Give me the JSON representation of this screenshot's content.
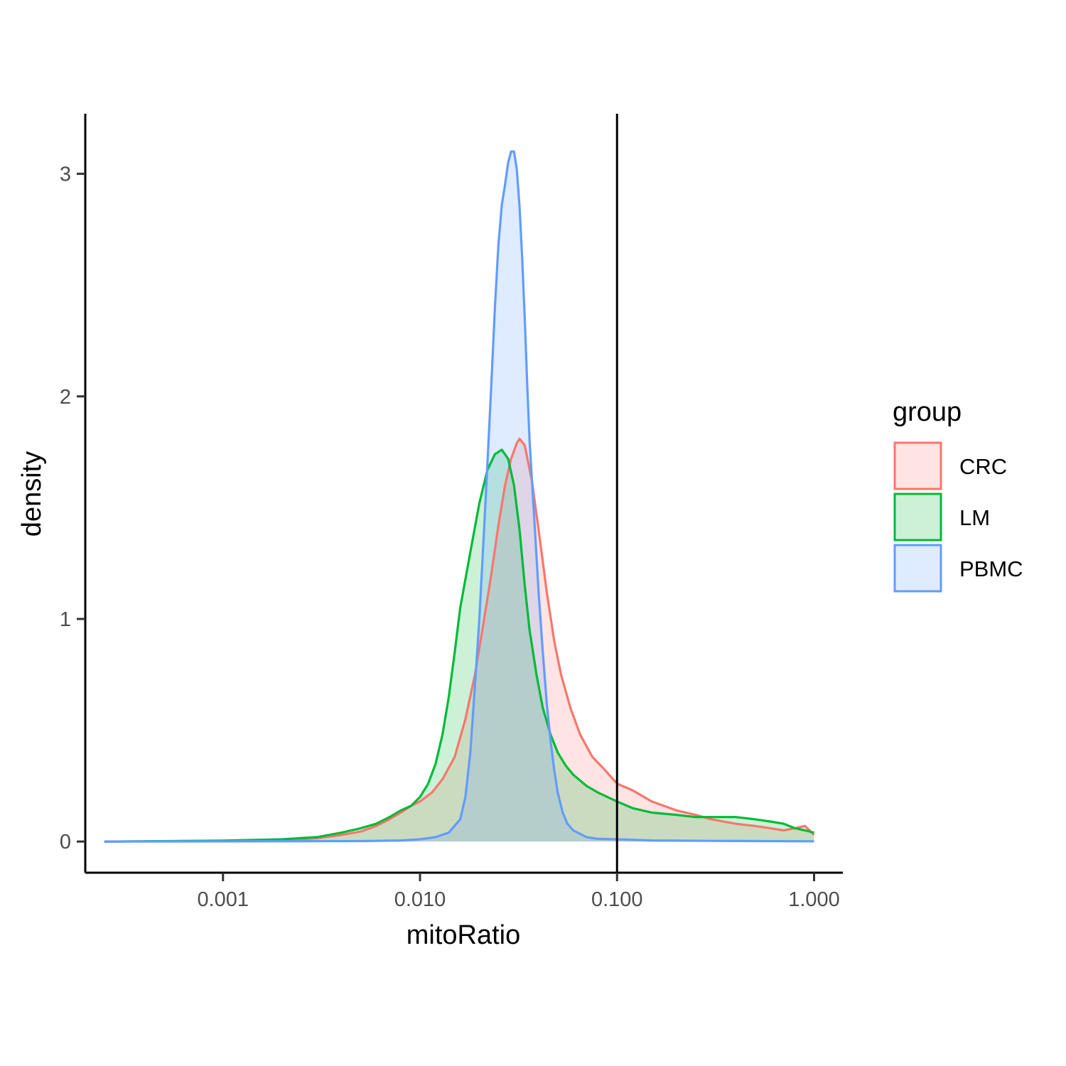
{
  "chart_data": {
    "type": "area",
    "xlabel": "mitoRatio",
    "ylabel": "density",
    "x_scale": "log10",
    "xlim": [
      0.0002,
      1.4
    ],
    "ylim": [
      -0.14,
      3.27
    ],
    "x_ticks": [
      0.001,
      0.01,
      0.1,
      1
    ],
    "x_tick_labels": [
      "0.001",
      "0.010",
      "0.100",
      "1.000"
    ],
    "y_ticks": [
      0,
      1,
      2,
      3
    ],
    "y_tick_labels": [
      "0",
      "1",
      "2",
      "3"
    ],
    "vline": 0.1,
    "grid": false,
    "legend": {
      "title": "group",
      "position": "right",
      "entries": [
        "CRC",
        "LM",
        "PBMC"
      ]
    },
    "series": [
      {
        "name": "CRC",
        "color": "#F8766D",
        "points": [
          [
            0.00025,
            0
          ],
          [
            0.001,
            0.003
          ],
          [
            0.002,
            0.006
          ],
          [
            0.003,
            0.015
          ],
          [
            0.004,
            0.03
          ],
          [
            0.005,
            0.045
          ],
          [
            0.006,
            0.07
          ],
          [
            0.007,
            0.1
          ],
          [
            0.008,
            0.13
          ],
          [
            0.009,
            0.16
          ],
          [
            0.01,
            0.18
          ],
          [
            0.0115,
            0.22
          ],
          [
            0.013,
            0.28
          ],
          [
            0.015,
            0.38
          ],
          [
            0.017,
            0.55
          ],
          [
            0.019,
            0.75
          ],
          [
            0.021,
            0.98
          ],
          [
            0.023,
            1.2
          ],
          [
            0.025,
            1.42
          ],
          [
            0.027,
            1.6
          ],
          [
            0.029,
            1.72
          ],
          [
            0.031,
            1.79
          ],
          [
            0.032,
            1.81
          ],
          [
            0.034,
            1.78
          ],
          [
            0.037,
            1.62
          ],
          [
            0.04,
            1.4
          ],
          [
            0.044,
            1.12
          ],
          [
            0.048,
            0.9
          ],
          [
            0.052,
            0.75
          ],
          [
            0.058,
            0.6
          ],
          [
            0.065,
            0.48
          ],
          [
            0.075,
            0.38
          ],
          [
            0.085,
            0.33
          ],
          [
            0.1,
            0.26
          ],
          [
            0.12,
            0.23
          ],
          [
            0.15,
            0.18
          ],
          [
            0.2,
            0.14
          ],
          [
            0.25,
            0.12
          ],
          [
            0.3,
            0.1
          ],
          [
            0.4,
            0.08
          ],
          [
            0.5,
            0.07
          ],
          [
            0.6,
            0.06
          ],
          [
            0.7,
            0.05
          ],
          [
            0.8,
            0.06
          ],
          [
            0.9,
            0.07
          ],
          [
            1.0,
            0.03
          ]
        ]
      },
      {
        "name": "LM",
        "color": "#00BA38",
        "points": [
          [
            0.00025,
            0
          ],
          [
            0.001,
            0.004
          ],
          [
            0.002,
            0.01
          ],
          [
            0.003,
            0.02
          ],
          [
            0.004,
            0.04
          ],
          [
            0.005,
            0.06
          ],
          [
            0.006,
            0.08
          ],
          [
            0.007,
            0.11
          ],
          [
            0.008,
            0.14
          ],
          [
            0.009,
            0.16
          ],
          [
            0.01,
            0.2
          ],
          [
            0.011,
            0.26
          ],
          [
            0.012,
            0.35
          ],
          [
            0.013,
            0.48
          ],
          [
            0.014,
            0.65
          ],
          [
            0.015,
            0.85
          ],
          [
            0.016,
            1.05
          ],
          [
            0.018,
            1.3
          ],
          [
            0.02,
            1.52
          ],
          [
            0.022,
            1.67
          ],
          [
            0.024,
            1.74
          ],
          [
            0.026,
            1.76
          ],
          [
            0.028,
            1.72
          ],
          [
            0.03,
            1.6
          ],
          [
            0.032,
            1.4
          ],
          [
            0.034,
            1.15
          ],
          [
            0.036,
            0.95
          ],
          [
            0.039,
            0.75
          ],
          [
            0.042,
            0.6
          ],
          [
            0.046,
            0.48
          ],
          [
            0.05,
            0.4
          ],
          [
            0.055,
            0.34
          ],
          [
            0.06,
            0.3
          ],
          [
            0.07,
            0.25
          ],
          [
            0.08,
            0.22
          ],
          [
            0.1,
            0.18
          ],
          [
            0.12,
            0.15
          ],
          [
            0.15,
            0.13
          ],
          [
            0.2,
            0.12
          ],
          [
            0.25,
            0.11
          ],
          [
            0.3,
            0.11
          ],
          [
            0.4,
            0.11
          ],
          [
            0.5,
            0.1
          ],
          [
            0.6,
            0.09
          ],
          [
            0.7,
            0.08
          ],
          [
            0.8,
            0.06
          ],
          [
            0.9,
            0.05
          ],
          [
            1.0,
            0.04
          ]
        ]
      },
      {
        "name": "PBMC",
        "color": "#619CFF",
        "points": [
          [
            0.00025,
            0
          ],
          [
            0.005,
            0.002
          ],
          [
            0.008,
            0.005
          ],
          [
            0.01,
            0.01
          ],
          [
            0.012,
            0.02
          ],
          [
            0.014,
            0.04
          ],
          [
            0.016,
            0.1
          ],
          [
            0.017,
            0.2
          ],
          [
            0.018,
            0.4
          ],
          [
            0.019,
            0.7
          ],
          [
            0.02,
            1.0
          ],
          [
            0.021,
            1.35
          ],
          [
            0.022,
            1.7
          ],
          [
            0.023,
            2.05
          ],
          [
            0.024,
            2.4
          ],
          [
            0.025,
            2.68
          ],
          [
            0.026,
            2.86
          ],
          [
            0.027,
            2.95
          ],
          [
            0.028,
            3.05
          ],
          [
            0.029,
            3.1
          ],
          [
            0.03,
            3.1
          ],
          [
            0.031,
            3.02
          ],
          [
            0.032,
            2.85
          ],
          [
            0.033,
            2.62
          ],
          [
            0.034,
            2.35
          ],
          [
            0.035,
            2.05
          ],
          [
            0.036,
            1.8
          ],
          [
            0.038,
            1.45
          ],
          [
            0.04,
            1.12
          ],
          [
            0.042,
            0.85
          ],
          [
            0.044,
            0.62
          ],
          [
            0.046,
            0.45
          ],
          [
            0.048,
            0.32
          ],
          [
            0.05,
            0.22
          ],
          [
            0.053,
            0.13
          ],
          [
            0.056,
            0.08
          ],
          [
            0.06,
            0.05
          ],
          [
            0.07,
            0.02
          ],
          [
            0.08,
            0.012
          ],
          [
            0.1,
            0.01
          ],
          [
            0.15,
            0.005
          ],
          [
            0.2,
            0.004
          ],
          [
            0.3,
            0.003
          ],
          [
            0.5,
            0.002
          ],
          [
            1.0,
            0.001
          ]
        ]
      }
    ]
  }
}
